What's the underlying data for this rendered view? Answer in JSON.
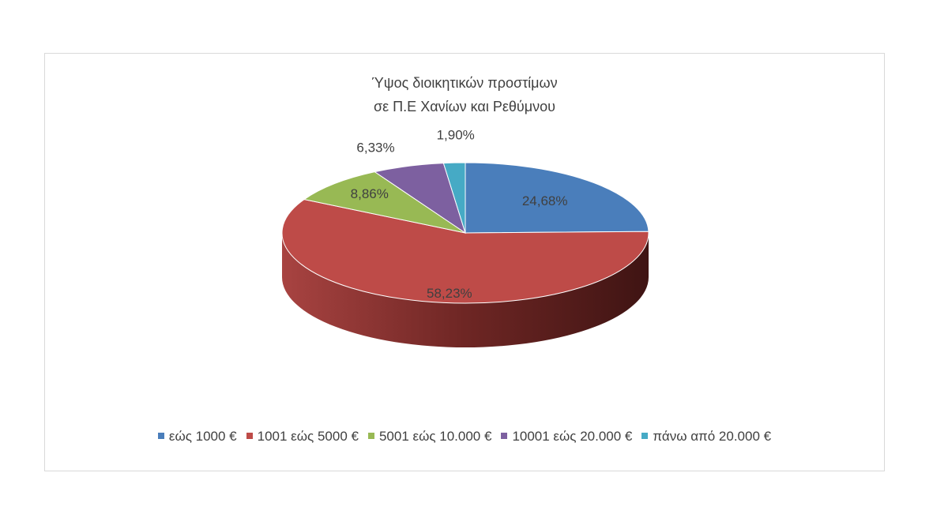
{
  "chart_data": {
    "type": "pie",
    "title": "Ύψος διοικητικών προστίμων σε Π.Ε Χανίων και Ρεθύμνου",
    "title_lines": [
      "Ύψος διοικητικών προστίμων",
      "σε Π.Ε Χανίων και Ρεθύμνου"
    ],
    "categories": [
      "εώς 1000 €",
      "1001 εώς 5000 €",
      "5001 εώς 10.000 €",
      "10001 εώς 20.000 €",
      "πάνω από 20.000 €"
    ],
    "values": [
      24.68,
      58.23,
      8.86,
      6.33,
      1.9
    ],
    "data_labels": [
      "24,68%",
      "58,23%",
      "8,86%",
      "6,33%",
      "1,90%"
    ],
    "colors": [
      "#4a7ebb",
      "#be4b48",
      "#98b954",
      "#7d60a0",
      "#46aac5"
    ],
    "legend_position": "bottom",
    "style": "3d"
  }
}
